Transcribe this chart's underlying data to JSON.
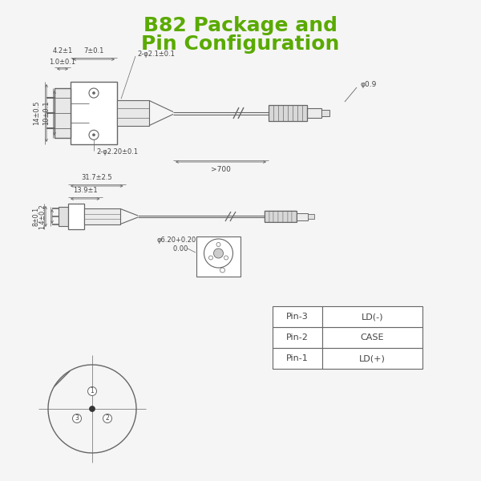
{
  "title_line1": "B82 Package and",
  "title_line2": "Pin Configuration",
  "title_color": "#5aaa00",
  "title_fontsize": 18,
  "bg_color": "#f5f5f5",
  "line_color": "#666666",
  "text_color": "#444444",
  "pin_table": [
    [
      "Pin-1",
      "LD(+)"
    ],
    [
      "Pin-2",
      "CASE"
    ],
    [
      "Pin-3",
      "LD(-)"
    ]
  ],
  "dim_top": {
    "w1": "1.0±0.1",
    "w2": "7±0.1",
    "h_pkg": "4.2±1",
    "h_cyl": "2-φ2.1±0.1",
    "h_total": "14±0.5",
    "h_inner": "10±0.1",
    "holes": "2-φ2.20±0.1",
    "fiber_d": "φ0.9",
    "cable_len": ">700"
  },
  "dim_bot": {
    "h1": "1.4±0.2",
    "h2": "8±0.1",
    "w1": "13.9±1",
    "w2": "31.7±2.5",
    "conn_d": "φ6.20+0.20\n        0.00"
  }
}
